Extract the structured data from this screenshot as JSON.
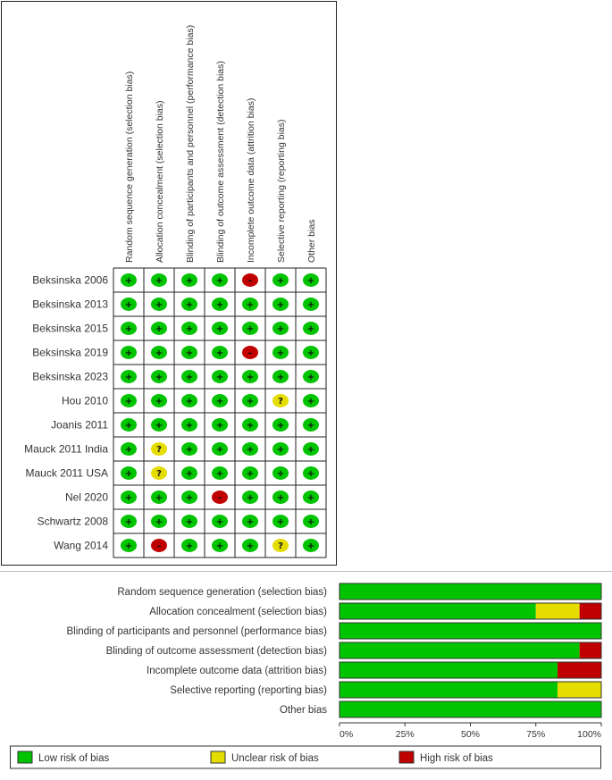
{
  "chart_data": [
    {
      "type": "table",
      "domains": [
        "Random sequence generation (selection bias)",
        "Allocation concealment (selection bias)",
        "Blinding of participants and personnel (performance bias)",
        "Blinding of outcome assessment (detection bias)",
        "Incomplete outcome data (attrition bias)",
        "Selective reporting (reporting bias)",
        "Other bias"
      ],
      "studies": [
        {
          "name": "Beksinska 2006",
          "judgements": [
            "low",
            "low",
            "low",
            "low",
            "high",
            "low",
            "low"
          ]
        },
        {
          "name": "Beksinska 2013",
          "judgements": [
            "low",
            "low",
            "low",
            "low",
            "low",
            "low",
            "low"
          ]
        },
        {
          "name": "Beksinska 2015",
          "judgements": [
            "low",
            "low",
            "low",
            "low",
            "low",
            "low",
            "low"
          ]
        },
        {
          "name": "Beksinska 2019",
          "judgements": [
            "low",
            "low",
            "low",
            "low",
            "high",
            "low",
            "low"
          ]
        },
        {
          "name": "Beksinska 2023",
          "judgements": [
            "low",
            "low",
            "low",
            "low",
            "low",
            "low",
            "low"
          ]
        },
        {
          "name": "Hou 2010",
          "judgements": [
            "low",
            "low",
            "low",
            "low",
            "low",
            "unclear",
            "low"
          ]
        },
        {
          "name": "Joanis 2011",
          "judgements": [
            "low",
            "low",
            "low",
            "low",
            "low",
            "low",
            "low"
          ]
        },
        {
          "name": "Mauck 2011 India",
          "judgements": [
            "low",
            "unclear",
            "low",
            "low",
            "low",
            "low",
            "low"
          ]
        },
        {
          "name": "Mauck 2011 USA",
          "judgements": [
            "low",
            "unclear",
            "low",
            "low",
            "low",
            "low",
            "low"
          ]
        },
        {
          "name": "Nel 2020",
          "judgements": [
            "low",
            "low",
            "low",
            "high",
            "low",
            "low",
            "low"
          ]
        },
        {
          "name": "Schwartz 2008",
          "judgements": [
            "low",
            "low",
            "low",
            "low",
            "low",
            "low",
            "low"
          ]
        },
        {
          "name": "Wang 2014",
          "judgements": [
            "low",
            "high",
            "low",
            "low",
            "low",
            "unclear",
            "low"
          ]
        }
      ],
      "symbols": {
        "low": "+",
        "unclear": "?",
        "high": "–"
      }
    },
    {
      "type": "bar",
      "orientation": "horizontal",
      "stacked": true,
      "categories": [
        "Random sequence generation (selection bias)",
        "Allocation concealment (selection bias)",
        "Blinding of participants and personnel (performance bias)",
        "Blinding of outcome assessment (detection bias)",
        "Incomplete outcome data (attrition bias)",
        "Selective reporting (reporting bias)",
        "Other bias"
      ],
      "series": [
        {
          "name": "Low risk of bias",
          "key": "low",
          "values": [
            100,
            75,
            100,
            91.7,
            83.3,
            83.3,
            100
          ]
        },
        {
          "name": "Unclear risk of bias",
          "key": "unclear",
          "values": [
            0,
            16.7,
            0,
            0,
            0,
            16.7,
            0
          ]
        },
        {
          "name": "High risk of bias",
          "key": "high",
          "values": [
            0,
            8.3,
            0,
            8.3,
            16.7,
            0,
            0
          ]
        }
      ],
      "xticks": [
        "0%",
        "25%",
        "50%",
        "75%",
        "100%"
      ],
      "xlim": [
        0,
        100
      ],
      "legend_position": "bottom"
    }
  ],
  "colors": {
    "low": "#00c400",
    "unclear": "#e5dc00",
    "high": "#c00000"
  }
}
